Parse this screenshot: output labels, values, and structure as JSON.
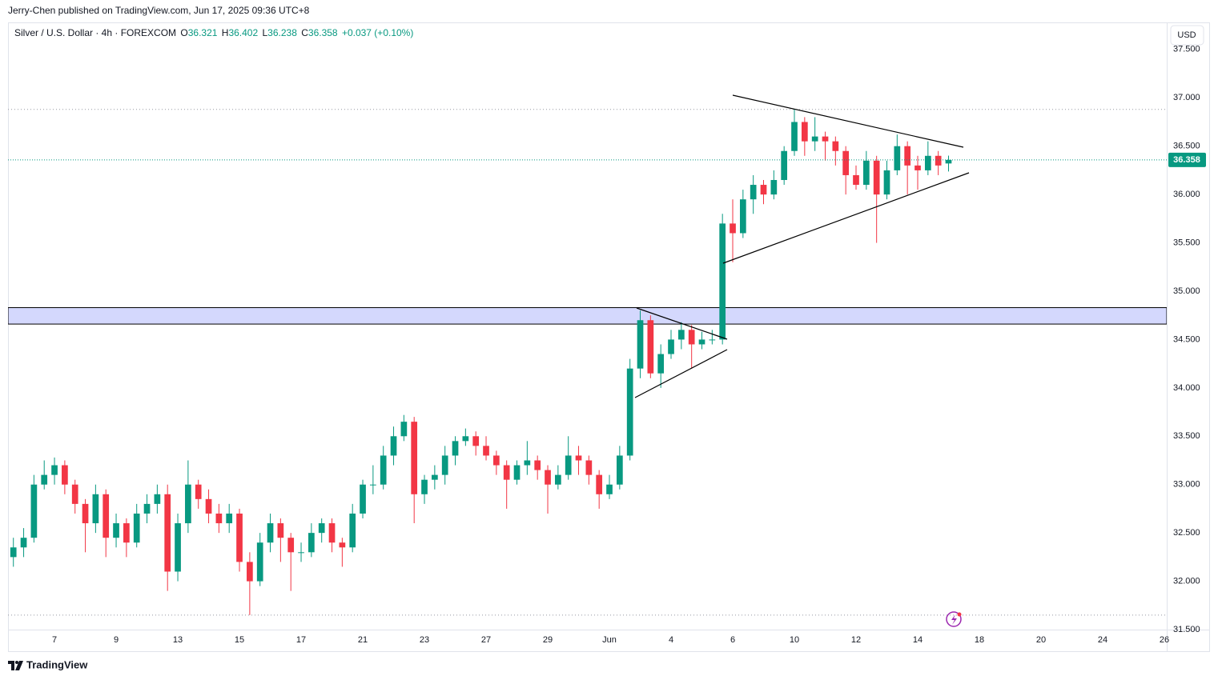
{
  "header": {
    "publisher": "Jerry-Chen published on TradingView.com, Jun 17, 2025 09:36 UTC+8"
  },
  "chart_data": {
    "type": "candlestick",
    "symbol": "Silver / U.S. Dollar · 4h · FOREXCOM",
    "ohlc_labels": [
      "O",
      "H",
      "L",
      "C"
    ],
    "change": "+0.037 (+0.10%)",
    "currency": "USD",
    "categories": [
      null,
      null,
      null,
      null,
      "7",
      null,
      null,
      null,
      null,
      null,
      "9",
      null,
      null,
      null,
      null,
      null,
      "13",
      null,
      null,
      null,
      null,
      null,
      "15",
      null,
      null,
      null,
      null,
      null,
      "17",
      null,
      null,
      null,
      null,
      null,
      "21",
      null,
      null,
      null,
      null,
      null,
      "23",
      null,
      null,
      null,
      null,
      null,
      "27",
      null,
      null,
      null,
      null,
      null,
      "29",
      null,
      null,
      null,
      null,
      null,
      "Jun",
      null,
      null,
      null,
      null,
      null,
      "4",
      null,
      null,
      null,
      null,
      null,
      "6",
      null,
      null,
      null,
      null,
      null,
      "10",
      null,
      null,
      null,
      null,
      null,
      "12",
      null,
      null,
      null,
      null,
      null,
      "14",
      null,
      null,
      null,
      null,
      null,
      "18",
      null,
      null,
      null,
      null,
      null,
      "20",
      null,
      null,
      null,
      null,
      null,
      "24",
      null,
      null,
      null,
      null,
      null,
      "26"
    ],
    "open": [
      32.25,
      32.35,
      32.45,
      33.0,
      33.1,
      33.2,
      33.0,
      32.8,
      32.6,
      32.9,
      32.45,
      32.6,
      32.4,
      32.7,
      32.8,
      32.9,
      32.1,
      32.6,
      33.0,
      32.85,
      32.7,
      32.6,
      32.7,
      32.2,
      32.0,
      32.4,
      32.6,
      32.45,
      32.3,
      32.3,
      32.5,
      32.6,
      32.4,
      32.35,
      32.7,
      33.0,
      33.0,
      33.3,
      33.5,
      33.65,
      32.9,
      33.05,
      33.1,
      33.3,
      33.45,
      33.5,
      33.4,
      33.3,
      33.2,
      33.05,
      33.2,
      33.25,
      33.15,
      33.0,
      33.1,
      33.3,
      33.25,
      33.1,
      32.9,
      33.0,
      33.3,
      34.2,
      34.7,
      34.15,
      34.35,
      34.5,
      34.6,
      34.45,
      34.5,
      34.5,
      35.7,
      35.6,
      35.95,
      36.1,
      36.0,
      36.15,
      36.45,
      36.75,
      36.55,
      36.6,
      36.55,
      36.45,
      36.2,
      36.1,
      36.35,
      36.0,
      36.25,
      36.5,
      36.3,
      36.25,
      36.4,
      36.321,
      null,
      null,
      null,
      null,
      null,
      null,
      null,
      null,
      null,
      null,
      null,
      null,
      null,
      null,
      null,
      null,
      null,
      null,
      null,
      null,
      null
    ],
    "high": [
      32.45,
      32.55,
      33.1,
      33.25,
      33.28,
      33.25,
      33.05,
      32.85,
      33.0,
      32.95,
      32.7,
      32.65,
      32.8,
      32.9,
      33.0,
      33.0,
      32.7,
      33.25,
      33.05,
      32.95,
      32.8,
      32.8,
      32.75,
      32.3,
      32.5,
      32.7,
      32.65,
      32.5,
      32.4,
      32.6,
      32.65,
      32.65,
      32.45,
      32.8,
      33.05,
      33.2,
      33.4,
      33.6,
      33.72,
      33.7,
      33.1,
      33.2,
      33.4,
      33.5,
      33.58,
      33.55,
      33.5,
      33.35,
      33.25,
      33.25,
      33.45,
      33.3,
      33.2,
      33.2,
      33.5,
      33.4,
      33.3,
      33.15,
      33.1,
      33.4,
      34.3,
      34.8,
      34.75,
      34.45,
      34.6,
      34.68,
      34.65,
      34.58,
      34.6,
      35.8,
      35.95,
      36.05,
      36.2,
      36.15,
      36.25,
      36.5,
      36.88,
      36.8,
      36.8,
      36.65,
      36.6,
      36.5,
      36.3,
      36.45,
      36.4,
      36.35,
      36.62,
      36.55,
      36.4,
      36.55,
      36.45,
      36.402,
      null,
      null,
      null,
      null,
      null,
      null,
      null,
      null,
      null,
      null,
      null,
      null,
      null,
      null,
      null,
      null,
      null,
      null,
      null,
      null,
      null
    ],
    "low": [
      32.15,
      32.25,
      32.4,
      32.95,
      33.0,
      32.9,
      32.7,
      32.3,
      32.5,
      32.25,
      32.35,
      32.25,
      32.35,
      32.6,
      32.7,
      31.9,
      32.0,
      32.5,
      32.75,
      32.6,
      32.5,
      32.5,
      32.1,
      31.65,
      31.95,
      32.3,
      32.2,
      31.9,
      32.2,
      32.25,
      32.4,
      32.3,
      32.15,
      32.3,
      32.65,
      32.9,
      32.95,
      33.2,
      33.45,
      32.6,
      32.8,
      32.95,
      33.0,
      33.2,
      33.4,
      33.3,
      33.25,
      33.1,
      32.75,
      33.0,
      33.1,
      33.05,
      32.7,
      32.95,
      33.05,
      33.1,
      33.0,
      32.75,
      32.85,
      32.95,
      33.25,
      34.1,
      34.1,
      34.0,
      34.3,
      34.4,
      34.2,
      34.4,
      34.45,
      34.45,
      35.3,
      35.55,
      35.8,
      35.9,
      35.95,
      36.1,
      36.4,
      36.4,
      36.45,
      36.35,
      36.3,
      36.0,
      36.05,
      36.05,
      35.5,
      35.95,
      36.2,
      36.0,
      36.05,
      36.2,
      36.2,
      36.238,
      null,
      null,
      null,
      null,
      null,
      null,
      null,
      null,
      null,
      null,
      null,
      null,
      null,
      null,
      null,
      null,
      null,
      null,
      null,
      null,
      null
    ],
    "close": [
      32.35,
      32.45,
      33.0,
      33.1,
      33.2,
      33.0,
      32.8,
      32.6,
      32.9,
      32.45,
      32.6,
      32.4,
      32.7,
      32.8,
      32.9,
      32.1,
      32.6,
      33.0,
      32.85,
      32.7,
      32.6,
      32.7,
      32.2,
      32.0,
      32.4,
      32.6,
      32.45,
      32.3,
      32.3,
      32.5,
      32.6,
      32.4,
      32.35,
      32.7,
      33.0,
      33.0,
      33.3,
      33.5,
      33.65,
      32.9,
      33.05,
      33.1,
      33.3,
      33.45,
      33.5,
      33.4,
      33.3,
      33.2,
      33.05,
      33.2,
      33.25,
      33.15,
      33.0,
      33.1,
      33.3,
      33.25,
      33.1,
      32.9,
      33.0,
      33.3,
      34.2,
      34.7,
      34.15,
      34.35,
      34.5,
      34.6,
      34.45,
      34.5,
      34.5,
      35.7,
      35.6,
      35.95,
      36.1,
      36.0,
      36.15,
      36.45,
      36.75,
      36.55,
      36.6,
      36.55,
      36.45,
      36.2,
      36.1,
      36.35,
      36.0,
      36.25,
      36.5,
      36.3,
      36.25,
      36.4,
      36.3,
      36.358,
      null,
      null,
      null,
      null,
      null,
      null,
      null,
      null,
      null,
      null,
      null,
      null,
      null,
      null,
      null,
      null,
      null,
      null,
      null,
      null,
      null
    ],
    "up_color": "#089981",
    "down_color": "#f23645",
    "ylim": [
      31.5,
      37.78
    ],
    "yticks": [
      {
        "value": 31.5,
        "label": "31.500"
      },
      {
        "value": 32,
        "label": "32.000"
      },
      {
        "value": 32.5,
        "label": "32.500"
      },
      {
        "value": 33,
        "label": "33.000"
      },
      {
        "value": 33.5,
        "label": "33.500"
      },
      {
        "value": 34,
        "label": "34.000"
      },
      {
        "value": 34.5,
        "label": "34.500"
      },
      {
        "value": 35,
        "label": "35.000"
      },
      {
        "value": 35.5,
        "label": "35.500"
      },
      {
        "value": 36,
        "label": "36.000"
      },
      {
        "value": 36.5,
        "label": "36.500"
      },
      {
        "value": 37,
        "label": "37.000"
      },
      {
        "value": 37.5,
        "label": "37.500"
      }
    ],
    "grid": false,
    "zone": [
      34.66,
      34.83
    ],
    "zone_color": "#d4d8fd",
    "reference_lines": [
      36.88,
      31.65
    ]
  },
  "footer": {
    "brand": "TradingView"
  }
}
